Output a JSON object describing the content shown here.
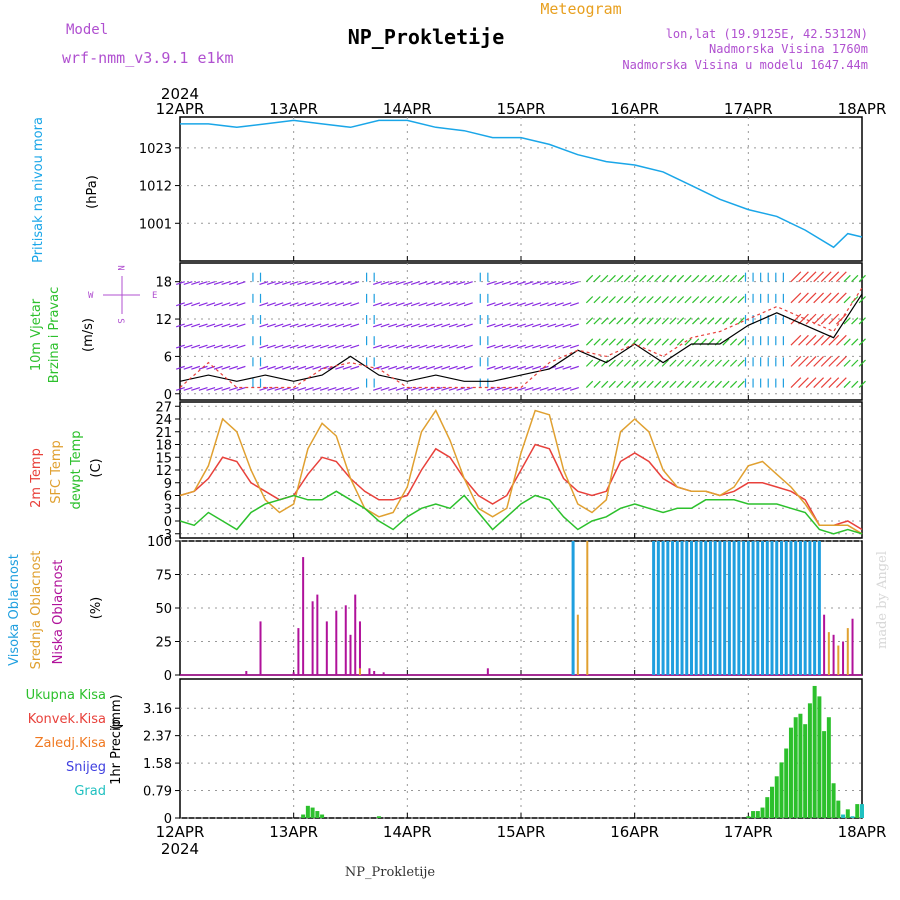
{
  "header": {
    "model_label": "Model",
    "model_name": "wrf-nmm_v3.9.1 e1km",
    "station": "NP_Prokletije",
    "product": "Meteogram",
    "lonlat": "lon,lat (19.9125E, 42.5312N)",
    "elevation": "Nadmorska Visina 1760m",
    "model_elevation": "Nadmorska Visina u modelu 1647.44m",
    "footer": "NP_Prokletije",
    "credit": "made by Angel",
    "year": "2024"
  },
  "colors": {
    "pressure": "#1aa6e8",
    "temp2m": "#e8413b",
    "sfc": "#e0a030",
    "dewpt": "#2cc02c",
    "high_cloud": "#1f9fdf",
    "mid_cloud": "#e0a030",
    "low_cloud": "#b0119a",
    "precip_total": "#2cc02c",
    "precip_conv": "#e8413b",
    "precip_frozen": "#f07820",
    "snow": "#4040e0",
    "graupel": "#20c0c0",
    "title_purple": "#b050d0",
    "header_orange": "#e8a020"
  },
  "chart_data": [
    {
      "type": "line",
      "panel": "pressure",
      "title": "",
      "ylabel": "Pritisak na nivou mora",
      "unit": "(hPa)",
      "xlim": [
        0,
        144
      ],
      "ylim": [
        990,
        1032
      ],
      "yticks": [
        1001,
        1012,
        1023
      ],
      "series": [
        {
          "x": [
            0,
            6,
            12,
            18,
            24,
            30,
            36,
            42,
            48,
            54,
            60,
            66,
            72,
            78,
            84,
            90,
            96,
            102,
            108,
            114,
            120,
            126,
            132,
            138,
            141,
            144
          ],
          "y": [
            1030,
            1030,
            1029,
            1030,
            1031,
            1030,
            1029,
            1031,
            1031,
            1029,
            1028,
            1026,
            1026,
            1024,
            1021,
            1019,
            1018,
            1016,
            1012,
            1008,
            1005,
            1003,
            999,
            994,
            998,
            997
          ]
        }
      ]
    },
    {
      "type": "line",
      "panel": "wind",
      "ylabel": "10m Vjetar",
      "ylabel2": "Brzina i Pravac",
      "unit": "(m/s)",
      "compass": {
        "n": "N",
        "s": "S",
        "w": "W",
        "e": "E"
      },
      "xlim": [
        0,
        144
      ],
      "ylim": [
        -1,
        21
      ],
      "yticks": [
        0,
        6,
        12,
        18
      ],
      "series": [
        {
          "x": [
            0,
            6,
            12,
            18,
            24,
            30,
            36,
            42,
            48,
            54,
            60,
            66,
            72,
            78,
            84,
            90,
            96,
            102,
            108,
            114,
            120,
            126,
            132,
            138,
            144
          ],
          "y": [
            2,
            3,
            2,
            3,
            2,
            3,
            6,
            3,
            2,
            3,
            2,
            2,
            3,
            4,
            7,
            5,
            8,
            5,
            8,
            8,
            11,
            13,
            11,
            9,
            16
          ]
        },
        {
          "x": [
            0,
            6,
            12,
            18,
            24,
            30,
            36,
            42,
            48,
            54,
            60,
            66,
            72,
            78,
            84,
            90,
            96,
            102,
            108,
            114,
            120,
            126,
            132,
            138,
            144
          ],
          "y": [
            1,
            5,
            1,
            1,
            1,
            4,
            5,
            4,
            1,
            1,
            1,
            1,
            1,
            5,
            7,
            6,
            8,
            6,
            9,
            10,
            12,
            14,
            12,
            10,
            17
          ]
        }
      ]
    },
    {
      "type": "line",
      "panel": "temperature",
      "ylabel": "2m Temp",
      "ylabel2": "SFC Temp",
      "ylabel3": "dewpt Temp",
      "unit": "(C)",
      "xlim": [
        0,
        144
      ],
      "ylim": [
        -4,
        28
      ],
      "yticks": [
        -3,
        0,
        3,
        6,
        9,
        12,
        15,
        18,
        21,
        24,
        27
      ],
      "x": [
        0,
        3,
        6,
        9,
        12,
        15,
        18,
        21,
        24,
        27,
        30,
        33,
        36,
        39,
        42,
        45,
        48,
        51,
        54,
        57,
        60,
        63,
        66,
        69,
        72,
        75,
        78,
        81,
        84,
        87,
        90,
        93,
        96,
        99,
        102,
        105,
        108,
        111,
        114,
        117,
        120,
        123,
        126,
        129,
        132,
        135,
        138,
        141,
        144
      ],
      "series": [
        {
          "name": "2m Temp",
          "values": [
            6,
            7,
            10,
            15,
            14,
            9,
            7,
            5,
            6,
            11,
            15,
            14,
            10,
            7,
            5,
            5,
            6,
            12,
            17,
            15,
            10,
            6,
            4,
            6,
            12,
            18,
            17,
            10,
            7,
            6,
            7,
            14,
            16,
            14,
            10,
            8,
            7,
            7,
            6,
            7,
            9,
            9,
            8,
            7,
            5,
            -1,
            -1,
            0,
            -2
          ]
        },
        {
          "name": "SFC Temp",
          "values": [
            6,
            7,
            13,
            24,
            21,
            12,
            5,
            2,
            4,
            17,
            23,
            20,
            10,
            3,
            1,
            2,
            8,
            21,
            26,
            19,
            10,
            3,
            1,
            3,
            16,
            26,
            25,
            12,
            4,
            2,
            5,
            21,
            24,
            21,
            12,
            8,
            7,
            7,
            6,
            8,
            13,
            14,
            11,
            8,
            4,
            -1,
            -1,
            -1,
            -3
          ]
        },
        {
          "name": "dewpt Temp",
          "values": [
            0,
            -1,
            2,
            0,
            -2,
            2,
            4,
            5,
            6,
            5,
            5,
            7,
            5,
            3,
            0,
            -2,
            1,
            3,
            4,
            3,
            6,
            2,
            -2,
            1,
            4,
            6,
            5,
            1,
            -2,
            0,
            1,
            3,
            4,
            3,
            2,
            3,
            3,
            5,
            5,
            5,
            4,
            4,
            4,
            3,
            2,
            -2,
            -3,
            -2,
            -3
          ]
        }
      ]
    },
    {
      "type": "bar",
      "panel": "cloud",
      "ylabel": "Visoka Oblacnost",
      "ylabel2": "Srednja Oblacnost",
      "ylabel3": "Niska Oblacnost",
      "unit": "(%)",
      "xlim": [
        0,
        144
      ],
      "ylim": [
        0,
        100
      ],
      "yticks": [
        0,
        25,
        50,
        75,
        100
      ],
      "series": [
        {
          "name": "Niska Oblacnost",
          "x": [
            14,
            17,
            24,
            25,
            26,
            28,
            29,
            31,
            33,
            35,
            36,
            37,
            38,
            40,
            41,
            43,
            65,
            136,
            138,
            140,
            142
          ],
          "values": [
            3,
            40,
            2,
            35,
            88,
            55,
            60,
            40,
            48,
            52,
            30,
            60,
            40,
            5,
            3,
            2,
            5,
            45,
            30,
            25,
            42
          ]
        },
        {
          "name": "Srednja Oblacnost",
          "x": [
            38,
            84,
            86,
            137,
            139,
            141
          ],
          "values": [
            5,
            45,
            100,
            32,
            22,
            35
          ]
        },
        {
          "name": "Visoka Oblacnost",
          "x": [
            83,
            100,
            101,
            102,
            103,
            104,
            105,
            106,
            107,
            108,
            109,
            110,
            111,
            112,
            113,
            114,
            115,
            116,
            117,
            118,
            119,
            120,
            121,
            122,
            123,
            124,
            125,
            126,
            127,
            128,
            129,
            130,
            131,
            132,
            133,
            134,
            135
          ],
          "values": [
            100,
            100,
            100,
            100,
            100,
            100,
            100,
            100,
            100,
            100,
            100,
            100,
            100,
            100,
            100,
            100,
            100,
            100,
            100,
            100,
            100,
            100,
            100,
            100,
            100,
            100,
            100,
            100,
            100,
            100,
            100,
            100,
            100,
            100,
            100,
            100,
            100
          ]
        }
      ]
    },
    {
      "type": "bar",
      "panel": "precip",
      "ylabel": "1hr Precip",
      "unit": "(mm)",
      "legend": [
        "Ukupna Kisa",
        "Konvek.Kisa",
        "Zaledj.Kisa",
        "Snijeg",
        "Grad"
      ],
      "xlim": [
        0,
        144
      ],
      "ylim": [
        0,
        4
      ],
      "yticks": [
        0,
        0.79,
        1.58,
        2.37,
        3.16
      ],
      "series": [
        {
          "name": "Ukupna Kisa",
          "x": [
            26,
            27,
            28,
            29,
            30,
            42,
            120,
            121,
            122,
            123,
            124,
            125,
            126,
            127,
            128,
            129,
            130,
            131,
            132,
            133,
            134,
            135,
            136,
            137,
            138,
            139,
            141,
            143
          ],
          "values": [
            0.1,
            0.35,
            0.3,
            0.2,
            0.1,
            0.05,
            0.05,
            0.2,
            0.2,
            0.3,
            0.6,
            0.9,
            1.2,
            1.6,
            2.0,
            2.6,
            2.9,
            3.0,
            2.7,
            3.3,
            3.8,
            3.5,
            2.5,
            2.9,
            1.0,
            0.5,
            0.25,
            0.4
          ]
        },
        {
          "name": "Snijeg",
          "x": [
            140,
            142,
            144
          ],
          "values": [
            0.1,
            0.05,
            0.4
          ]
        }
      ]
    }
  ],
  "xaxis": {
    "labels": [
      "12APR",
      "13APR",
      "14APR",
      "15APR",
      "16APR",
      "17APR",
      "18APR"
    ],
    "hours_per_label": 24
  }
}
